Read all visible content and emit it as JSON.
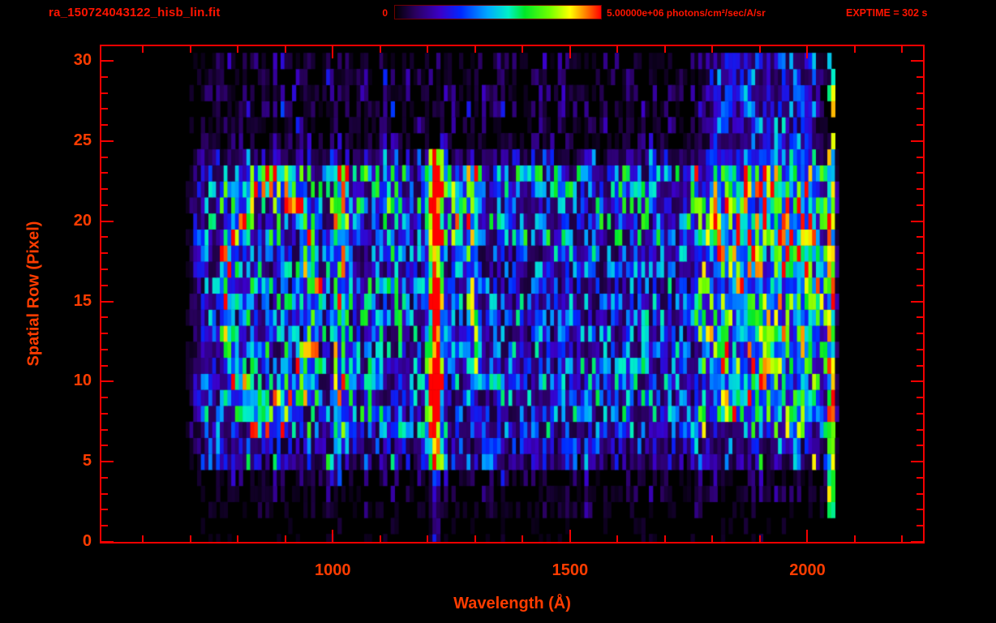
{
  "header": {
    "title": "ra_150724043122_hisb_lin.fit",
    "exptime": "EXPTIME = 302 s",
    "colorbar": {
      "min_label": "0",
      "max_label": "5.00000e+06 photons/cm²/sec/A/sr"
    }
  },
  "chart_data": {
    "type": "heatmap",
    "title": "ra_150724043122_hisb_lin.fit",
    "xlabel": "Wavelength (Å)",
    "ylabel": "Spatial Row (Pixel)",
    "xlim": [
      509,
      2247
    ],
    "ylim": [
      0,
      31
    ],
    "x_ticks": [
      1000,
      1500,
      2000
    ],
    "x_minor_step": 100,
    "y_ticks": [
      0,
      5,
      10,
      15,
      20,
      25,
      30
    ],
    "y_minor_step": 1,
    "exposure_time_s": 302,
    "colorbar": {
      "min": 0,
      "max": 5000000,
      "units": "photons/cm²/sec/A/sr",
      "palette": [
        [
          0.0,
          "#000000"
        ],
        [
          0.1,
          "#2a0060"
        ],
        [
          0.22,
          "#3b00c8"
        ],
        [
          0.32,
          "#0028ff"
        ],
        [
          0.45,
          "#00a8ff"
        ],
        [
          0.55,
          "#00f0c8"
        ],
        [
          0.63,
          "#00e828"
        ],
        [
          0.75,
          "#70ff00"
        ],
        [
          0.85,
          "#ffff00"
        ],
        [
          0.93,
          "#ff7800"
        ],
        [
          1.0,
          "#ff0000"
        ]
      ]
    },
    "data_extent": {
      "wavelength": [
        690,
        2062
      ],
      "rows": [
        0,
        30
      ]
    },
    "noise_seed": 20150724,
    "bin_width_angstrom": 8,
    "features": [
      {
        "name": "lyman-alpha-emission-line",
        "wavelength": 1216,
        "sigma": 9,
        "rows": [
          5,
          24
        ],
        "strength": 2.2
      },
      {
        "name": "faint-line-extension",
        "wavelength": 1216,
        "sigma": 5,
        "rows": [
          0,
          4
        ],
        "strength": 0.5
      },
      {
        "name": "ring-structure",
        "center_wavelength": 868,
        "center_row": 15.3,
        "rx": 92,
        "ry": 7.6,
        "rows": [
          7,
          23
        ],
        "strength": 0.55
      },
      {
        "name": "vertical-bar",
        "wavelength": [
          1006,
          1030
        ],
        "rows": [
          6,
          23
        ],
        "strength": 0.5
      },
      {
        "name": "vertical-bar-2",
        "wavelength": [
          1283,
          1307
        ],
        "rows": [
          11,
          23
        ],
        "strength": 0.5
      },
      {
        "name": "bright-blob",
        "wavelength": [
          1240,
          1310
        ],
        "rows": [
          19,
          23
        ],
        "strength": 0.35
      },
      {
        "name": "uv-bright-band",
        "wavelength": [
          1760,
          2040
        ],
        "rows": [
          8,
          30
        ],
        "strength": 0.38
      },
      {
        "name": "edge-spike",
        "wavelength": [
          2044,
          2060
        ],
        "rows": [
          2,
          30
        ],
        "strength": 1.5
      }
    ]
  }
}
